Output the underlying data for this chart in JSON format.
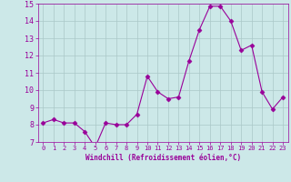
{
  "x": [
    0,
    1,
    2,
    3,
    4,
    5,
    6,
    7,
    8,
    9,
    10,
    11,
    12,
    13,
    14,
    15,
    16,
    17,
    18,
    19,
    20,
    21,
    22,
    23
  ],
  "y": [
    8.1,
    8.3,
    8.1,
    8.1,
    7.6,
    6.7,
    8.1,
    8.0,
    8.0,
    8.6,
    10.8,
    9.9,
    9.5,
    9.6,
    11.7,
    13.5,
    14.85,
    14.85,
    14.0,
    12.3,
    12.6,
    9.9,
    8.9,
    9.6
  ],
  "line_color": "#990099",
  "marker": "D",
  "marker_size": 2.5,
  "bg_color": "#cce8e8",
  "grid_color": "#aac8c8",
  "xlabel": "Windchill (Refroidissement éolien,°C)",
  "xlabel_color": "#990099",
  "tick_color": "#990099",
  "ylim": [
    7,
    15
  ],
  "xlim": [
    -0.5,
    23.5
  ],
  "yticks": [
    7,
    8,
    9,
    10,
    11,
    12,
    13,
    14,
    15
  ],
  "xticks": [
    0,
    1,
    2,
    3,
    4,
    5,
    6,
    7,
    8,
    9,
    10,
    11,
    12,
    13,
    14,
    15,
    16,
    17,
    18,
    19,
    20,
    21,
    22,
    23
  ]
}
